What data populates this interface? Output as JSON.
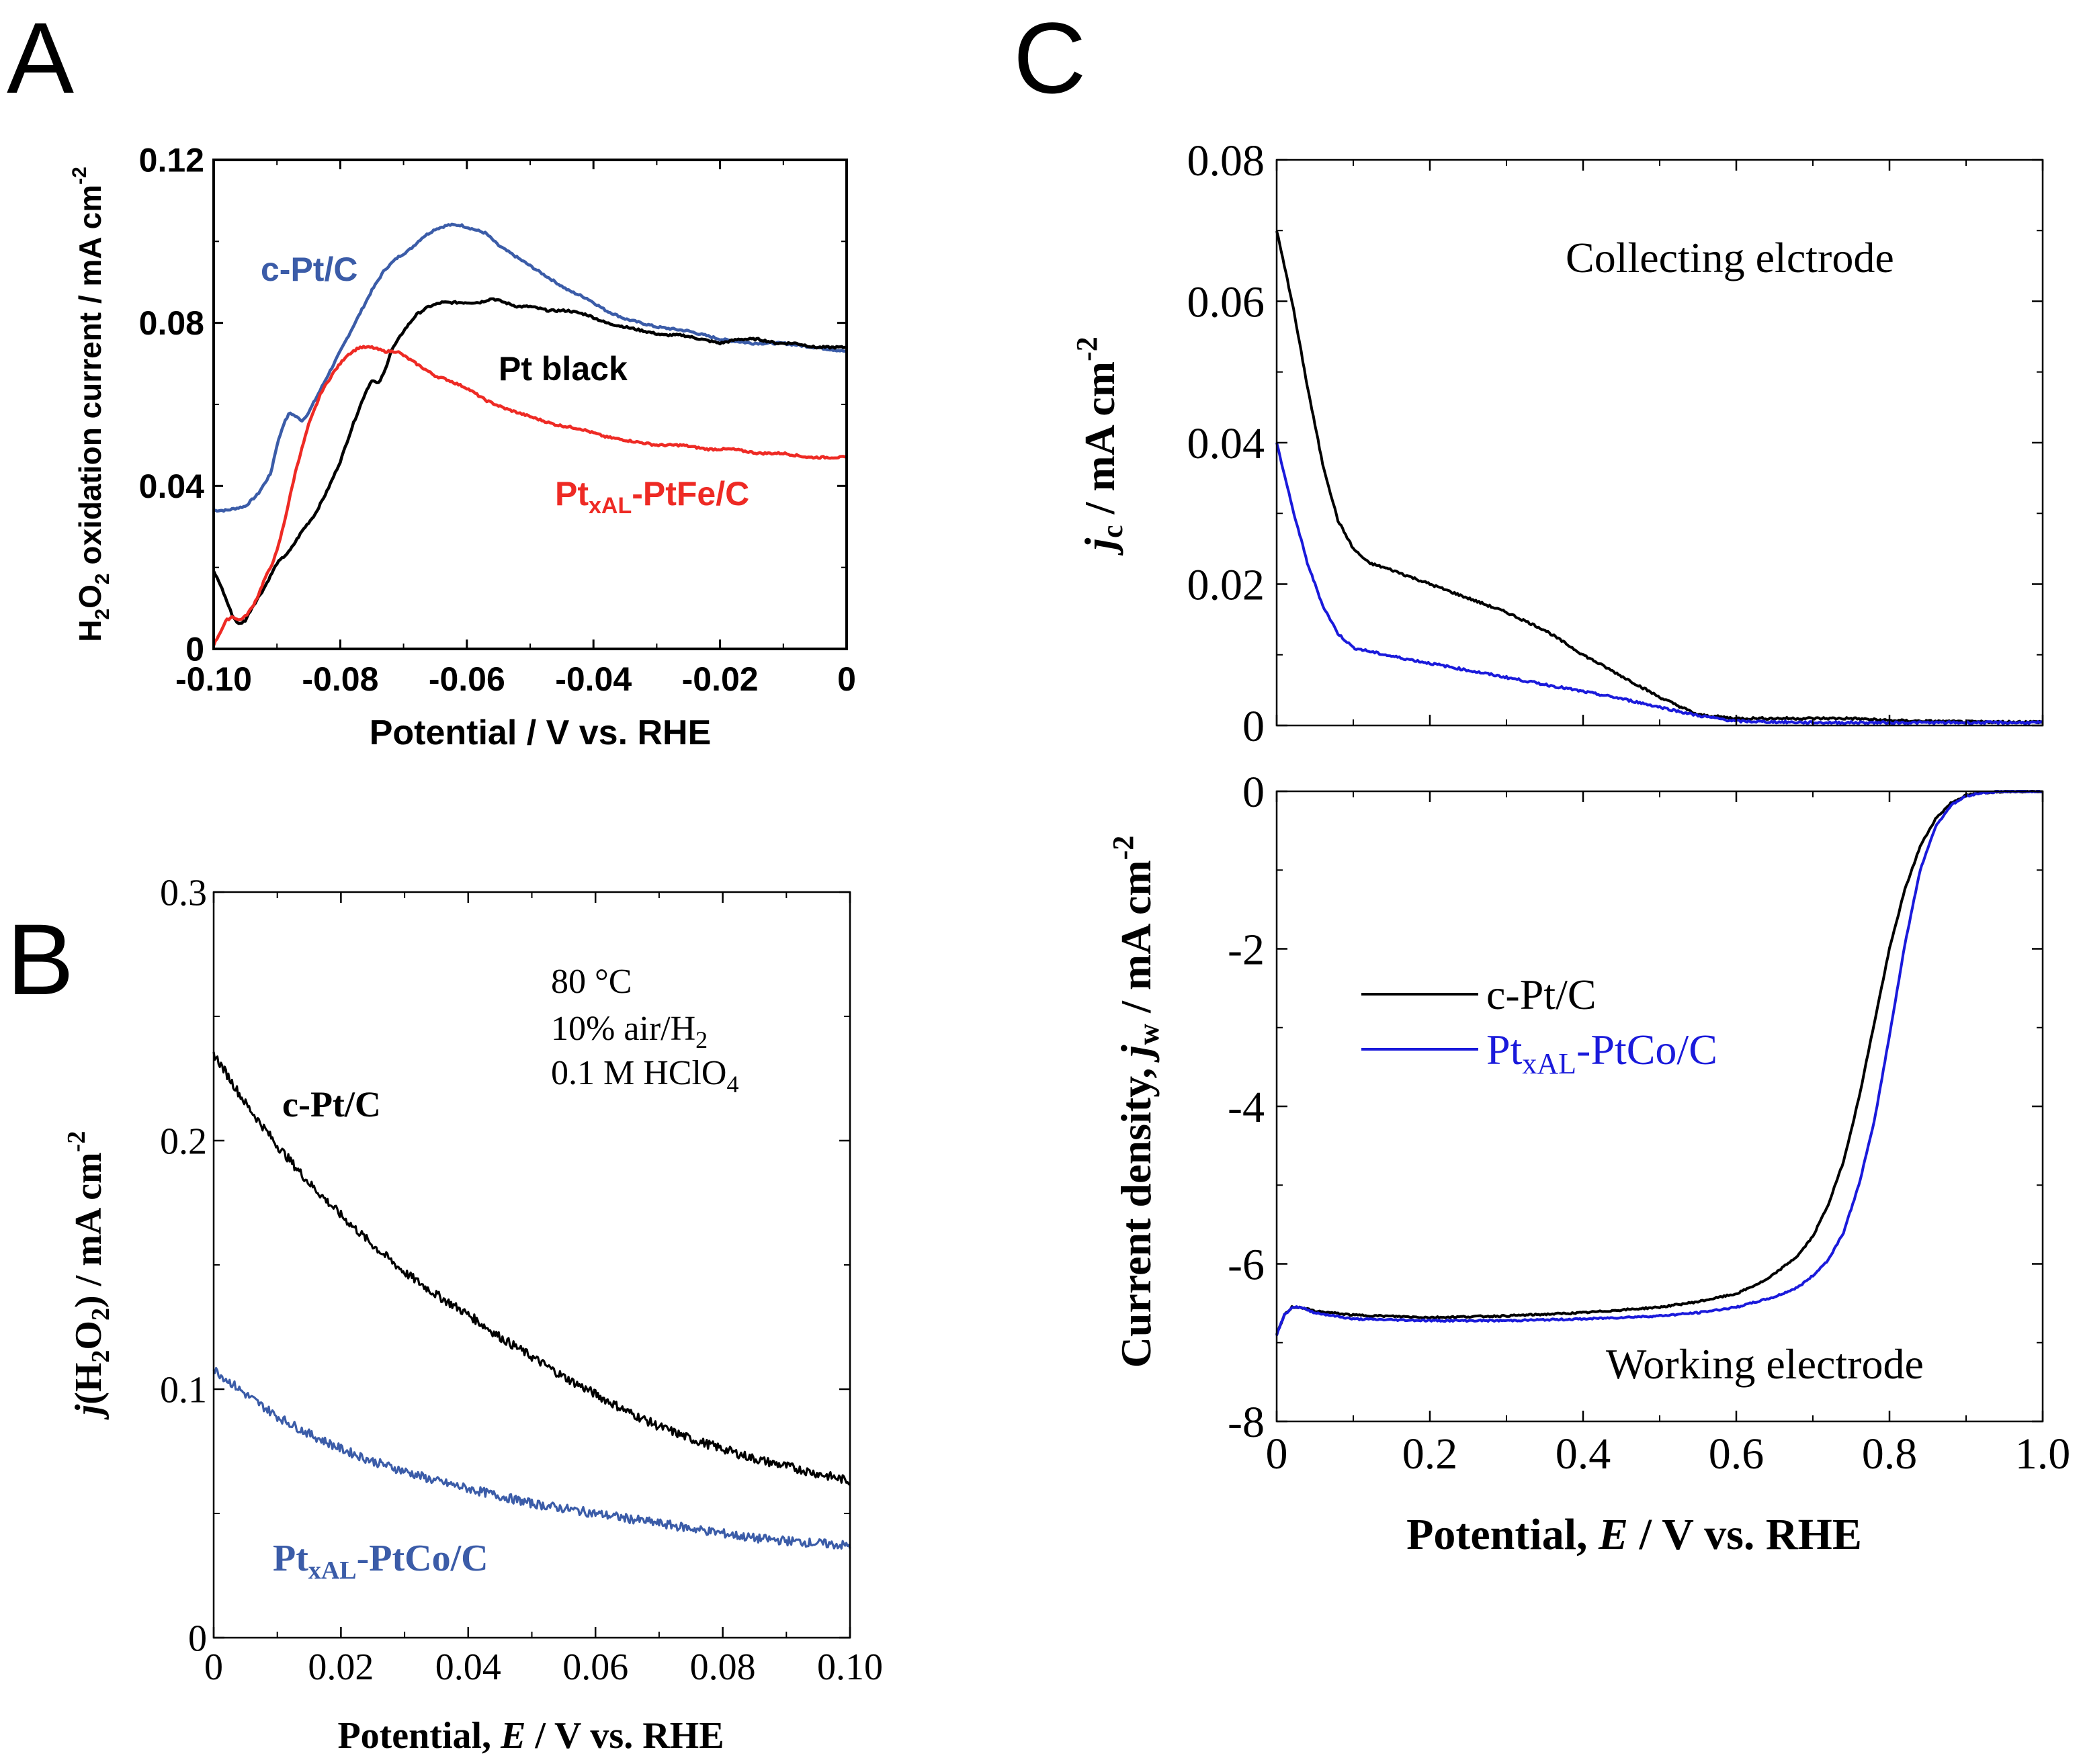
{
  "panels": {
    "A": {
      "letter": "A"
    },
    "B": {
      "letter": "B"
    },
    "C": {
      "letter": "C"
    }
  },
  "chart_data": [
    {
      "id": "A",
      "type": "line",
      "xlabel": "Potential / V vs. RHE",
      "ylabel": "H2O2 oxidation current / mA cm-2",
      "xlim": [
        -0.1,
        0
      ],
      "ylim": [
        0,
        0.12
      ],
      "xticks": [
        -0.1,
        -0.08,
        -0.06,
        -0.04,
        -0.02,
        0
      ],
      "xtick_labels": [
        "-0.10",
        "-0.08",
        "-0.06",
        "-0.04",
        "-0.02",
        "0"
      ],
      "yticks": [
        0,
        0.04,
        0.08,
        0.12
      ],
      "ytick_labels": [
        "0",
        "0.04",
        "0.08",
        "0.12"
      ],
      "series": [
        {
          "name": "c-Pt/C",
          "color": "#3b5ca8",
          "x": [
            -0.1,
            -0.098,
            -0.095,
            -0.093,
            -0.091,
            -0.09,
            -0.089,
            -0.088,
            -0.087,
            -0.086,
            -0.085,
            -0.083,
            -0.081,
            -0.079,
            -0.077,
            -0.075,
            -0.073,
            -0.071,
            -0.069,
            -0.067,
            -0.065,
            -0.063,
            -0.061,
            -0.059,
            -0.057,
            -0.055,
            -0.053,
            -0.05,
            -0.047,
            -0.044,
            -0.041,
            -0.038,
            -0.035,
            -0.03,
            -0.025,
            -0.02,
            -0.015,
            -0.01,
            -0.005,
            0.0
          ],
          "y": [
            0.034,
            0.034,
            0.035,
            0.038,
            0.043,
            0.05,
            0.055,
            0.058,
            0.057,
            0.056,
            0.058,
            0.064,
            0.07,
            0.076,
            0.082,
            0.088,
            0.093,
            0.096,
            0.098,
            0.101,
            0.103,
            0.104,
            0.104,
            0.103,
            0.102,
            0.099,
            0.097,
            0.094,
            0.091,
            0.088,
            0.086,
            0.083,
            0.081,
            0.079,
            0.078,
            0.076,
            0.075,
            0.075,
            0.074,
            0.073
          ]
        },
        {
          "name": "Pt black",
          "color": "#000000",
          "x": [
            -0.1,
            -0.099,
            -0.098,
            -0.097,
            -0.096,
            -0.095,
            -0.094,
            -0.092,
            -0.09,
            -0.088,
            -0.086,
            -0.084,
            -0.082,
            -0.08,
            -0.078,
            -0.076,
            -0.075,
            -0.074,
            -0.073,
            -0.072,
            -0.07,
            -0.068,
            -0.066,
            -0.064,
            -0.062,
            -0.06,
            -0.058,
            -0.056,
            -0.054,
            -0.052,
            -0.05,
            -0.047,
            -0.044,
            -0.041,
            -0.038,
            -0.035,
            -0.032,
            -0.029,
            -0.026,
            -0.023,
            -0.02,
            -0.017,
            -0.014,
            -0.011,
            -0.008,
            -0.005,
            -0.002,
            0.0
          ],
          "y": [
            0.019,
            0.016,
            0.012,
            0.008,
            0.006,
            0.007,
            0.01,
            0.015,
            0.021,
            0.024,
            0.029,
            0.033,
            0.039,
            0.046,
            0.055,
            0.063,
            0.066,
            0.065,
            0.068,
            0.073,
            0.078,
            0.082,
            0.084,
            0.085,
            0.085,
            0.085,
            0.085,
            0.086,
            0.085,
            0.084,
            0.084,
            0.083,
            0.083,
            0.082,
            0.08,
            0.079,
            0.078,
            0.077,
            0.077,
            0.076,
            0.075,
            0.076,
            0.076,
            0.075,
            0.075,
            0.074,
            0.074,
            0.074
          ]
        },
        {
          "name": "PtxAL-PtFe/C",
          "color": "#ee2a24",
          "x": [
            -0.1,
            -0.099,
            -0.098,
            -0.097,
            -0.096,
            -0.095,
            -0.094,
            -0.093,
            -0.092,
            -0.091,
            -0.09,
            -0.089,
            -0.088,
            -0.087,
            -0.085,
            -0.083,
            -0.081,
            -0.079,
            -0.077,
            -0.075,
            -0.073,
            -0.071,
            -0.069,
            -0.067,
            -0.065,
            -0.063,
            -0.06,
            -0.057,
            -0.054,
            -0.05,
            -0.046,
            -0.042,
            -0.038,
            -0.034,
            -0.03,
            -0.026,
            -0.022,
            -0.018,
            -0.014,
            -0.01,
            -0.006,
            -0.003,
            0.0
          ],
          "y": [
            0.001,
            0.004,
            0.007,
            0.008,
            0.007,
            0.008,
            0.01,
            0.013,
            0.017,
            0.02,
            0.024,
            0.03,
            0.037,
            0.044,
            0.055,
            0.063,
            0.068,
            0.072,
            0.074,
            0.074,
            0.073,
            0.073,
            0.071,
            0.069,
            0.067,
            0.066,
            0.064,
            0.061,
            0.059,
            0.057,
            0.055,
            0.054,
            0.052,
            0.051,
            0.05,
            0.05,
            0.049,
            0.049,
            0.048,
            0.048,
            0.047,
            0.047,
            0.047
          ]
        }
      ],
      "labels": [
        {
          "text": "c-Pt/C",
          "color": "#3b5ca8"
        },
        {
          "text": "Pt black",
          "color": "#000000"
        },
        {
          "main": "Pt",
          "sub": "xAL",
          "rest": "-PtFe/C",
          "color": "#ee2a24"
        }
      ]
    },
    {
      "id": "B",
      "type": "line",
      "xlabel": "Potential, E / V vs. RHE",
      "ylabel": "j(H2O2) / mA cm-2",
      "xlim": [
        0,
        0.1
      ],
      "ylim": [
        0,
        0.3
      ],
      "xticks": [
        0,
        0.02,
        0.04,
        0.06,
        0.08,
        0.1
      ],
      "xtick_labels": [
        "0",
        "0.02",
        "0.04",
        "0.06",
        "0.08",
        "0.10"
      ],
      "yticks": [
        0,
        0.1,
        0.2,
        0.3
      ],
      "ytick_labels": [
        "0",
        "0.1",
        "0.2",
        "0.3"
      ],
      "conditions": [
        "80 °C",
        "10% air/H2",
        "0.1 M HClO4"
      ],
      "series": [
        {
          "name": "c-Pt/C",
          "color": "#000000",
          "x": [
            0,
            0.005,
            0.01,
            0.015,
            0.02,
            0.025,
            0.03,
            0.035,
            0.04,
            0.045,
            0.05,
            0.055,
            0.06,
            0.065,
            0.07,
            0.075,
            0.08,
            0.085,
            0.09,
            0.095,
            0.1
          ],
          "y": [
            0.235,
            0.215,
            0.198,
            0.183,
            0.17,
            0.158,
            0.147,
            0.138,
            0.13,
            0.121,
            0.113,
            0.105,
            0.098,
            0.091,
            0.085,
            0.08,
            0.076,
            0.072,
            0.069,
            0.066,
            0.063
          ]
        },
        {
          "name": "PtxAL-PtCo/C",
          "color": "#3b5ca8",
          "x": [
            0,
            0.005,
            0.01,
            0.015,
            0.02,
            0.025,
            0.03,
            0.035,
            0.04,
            0.045,
            0.05,
            0.055,
            0.06,
            0.065,
            0.07,
            0.075,
            0.08,
            0.085,
            0.09,
            0.095,
            0.1
          ],
          "y": [
            0.108,
            0.098,
            0.089,
            0.082,
            0.076,
            0.071,
            0.067,
            0.063,
            0.06,
            0.057,
            0.054,
            0.052,
            0.05,
            0.048,
            0.046,
            0.044,
            0.042,
            0.04,
            0.039,
            0.038,
            0.037
          ]
        }
      ],
      "labels": [
        {
          "text": "c-Pt/C",
          "color": "#000000"
        },
        {
          "main": "Pt",
          "sub": "xAL",
          "rest": "-PtCo/C",
          "color": "#3b5ca8"
        }
      ]
    },
    {
      "id": "C-top",
      "type": "line",
      "title": "Collecting elctrode",
      "ylabel": "jc / mA cm-2",
      "xlim": [
        0,
        1.0
      ],
      "ylim": [
        0,
        0.08
      ],
      "yticks": [
        0,
        0.02,
        0.04,
        0.06,
        0.08
      ],
      "ytick_labels": [
        "0",
        "0.02",
        "0.04",
        "0.06",
        "0.08"
      ],
      "series": [
        {
          "name": "c-Pt/C",
          "color": "#000000",
          "x": [
            0,
            0.02,
            0.04,
            0.06,
            0.08,
            0.1,
            0.12,
            0.15,
            0.2,
            0.25,
            0.3,
            0.35,
            0.4,
            0.45,
            0.5,
            0.55,
            0.6,
            0.65,
            0.7,
            0.75,
            0.8,
            0.9,
            1.0
          ],
          "y": [
            0.07,
            0.06,
            0.048,
            0.037,
            0.029,
            0.025,
            0.023,
            0.022,
            0.02,
            0.018,
            0.016,
            0.0135,
            0.01,
            0.007,
            0.004,
            0.0015,
            0.001,
            0.001,
            0.001,
            0.001,
            0.0007,
            0.0005,
            0.0005
          ]
        },
        {
          "name": "PtxAL-PtCo/C",
          "color": "#1a1adb",
          "x": [
            0,
            0.02,
            0.04,
            0.06,
            0.08,
            0.1,
            0.12,
            0.15,
            0.2,
            0.25,
            0.3,
            0.35,
            0.4,
            0.45,
            0.5,
            0.55,
            0.6,
            0.7,
            0.8,
            0.9,
            1.0
          ],
          "y": [
            0.04,
            0.031,
            0.023,
            0.017,
            0.013,
            0.011,
            0.0105,
            0.0098,
            0.0088,
            0.0078,
            0.0068,
            0.0058,
            0.0048,
            0.0038,
            0.0026,
            0.0014,
            0.0006,
            0.0004,
            0.0004,
            0.0004,
            0.0004
          ]
        }
      ]
    },
    {
      "id": "C-bottom",
      "type": "line",
      "title": "Working electrode",
      "xlabel": "Potential, E / V vs. RHE",
      "ylabel": "Current density, jw / mA cm-2",
      "xlim": [
        0,
        1.0
      ],
      "ylim": [
        -8,
        0
      ],
      "xticks": [
        0,
        0.2,
        0.4,
        0.6,
        0.8,
        1.0
      ],
      "xtick_labels": [
        "0",
        "0.2",
        "0.4",
        "0.6",
        "0.8",
        "1.0"
      ],
      "yticks": [
        -8,
        -6,
        -4,
        -2,
        0
      ],
      "ytick_labels": [
        "-8",
        "-6",
        "-4",
        "-2",
        "0"
      ],
      "series": [
        {
          "name": "c-Pt/C",
          "color": "#000000",
          "x": [
            0,
            0.01,
            0.02,
            0.03,
            0.05,
            0.1,
            0.2,
            0.3,
            0.4,
            0.5,
            0.55,
            0.6,
            0.64,
            0.68,
            0.7,
            0.72,
            0.74,
            0.76,
            0.78,
            0.8,
            0.82,
            0.84,
            0.86,
            0.88,
            0.9,
            0.92,
            0.95,
            1.0
          ],
          "y": [
            -6.9,
            -6.65,
            -6.55,
            -6.55,
            -6.6,
            -6.65,
            -6.68,
            -6.66,
            -6.62,
            -6.55,
            -6.48,
            -6.38,
            -6.2,
            -5.9,
            -5.65,
            -5.25,
            -4.7,
            -3.9,
            -2.95,
            -2.0,
            -1.25,
            -0.7,
            -0.35,
            -0.15,
            -0.05,
            -0.02,
            0,
            0
          ]
        },
        {
          "name": "PtxAL-PtCo/C",
          "color": "#1a1adb",
          "x": [
            0,
            0.01,
            0.02,
            0.03,
            0.05,
            0.1,
            0.2,
            0.3,
            0.4,
            0.5,
            0.55,
            0.6,
            0.65,
            0.68,
            0.7,
            0.72,
            0.74,
            0.76,
            0.78,
            0.8,
            0.82,
            0.84,
            0.86,
            0.88,
            0.9,
            0.92,
            0.95,
            1.0
          ],
          "y": [
            -6.9,
            -6.65,
            -6.55,
            -6.55,
            -6.62,
            -6.7,
            -6.72,
            -6.72,
            -6.7,
            -6.66,
            -6.62,
            -6.55,
            -6.42,
            -6.3,
            -6.15,
            -5.95,
            -5.6,
            -5.0,
            -4.2,
            -3.1,
            -1.95,
            -1.0,
            -0.45,
            -0.18,
            -0.06,
            -0.02,
            0,
            0
          ]
        }
      ],
      "legend": [
        {
          "text": "c-Pt/C",
          "color": "#000000"
        },
        {
          "main": "Pt",
          "sub": "xAL",
          "rest": "-PtCo/C",
          "color": "#1a1adb"
        }
      ]
    }
  ]
}
